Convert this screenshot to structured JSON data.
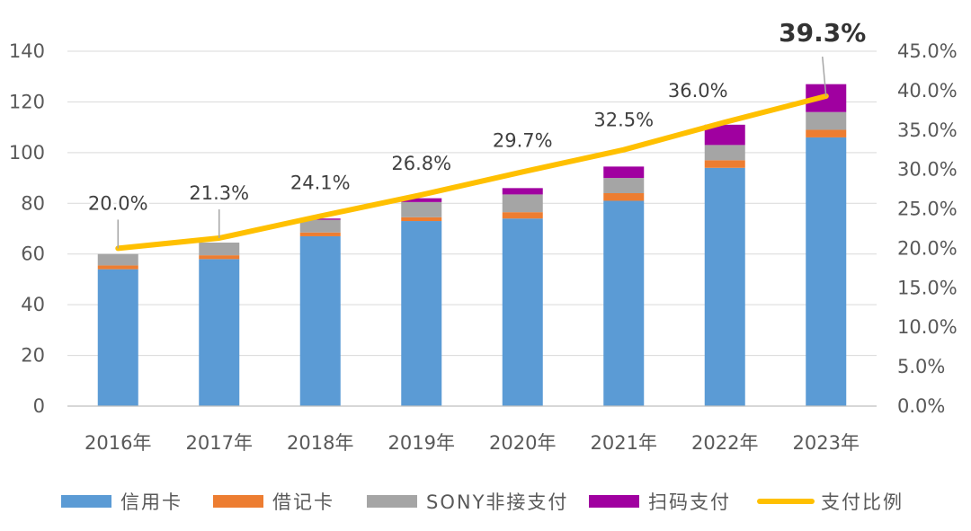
{
  "chart_data": {
    "type": "bar",
    "stacked": true,
    "categories": [
      "2016年",
      "2017年",
      "2018年",
      "2019年",
      "2020年",
      "2021年",
      "2022年",
      "2023年"
    ],
    "series": [
      {
        "name": "信用卡",
        "type": "bar",
        "axis": "left",
        "color": "#5B9BD5",
        "values": [
          54,
          58,
          67,
          73,
          74,
          81,
          94,
          106
        ]
      },
      {
        "name": "借记卡",
        "type": "bar",
        "axis": "left",
        "color": "#ED7D31",
        "values": [
          1.5,
          1.5,
          1.5,
          1.5,
          2.5,
          3,
          3,
          3
        ]
      },
      {
        "name": "SONY非接支付",
        "type": "bar",
        "axis": "left",
        "color": "#A5A5A5",
        "values": [
          4.5,
          5,
          5,
          6,
          7,
          6,
          6,
          7
        ]
      },
      {
        "name": "扫码支付",
        "type": "bar",
        "axis": "left",
        "color": "#A000A0",
        "values": [
          0,
          0,
          0.5,
          1.5,
          2.5,
          4.5,
          8,
          11
        ]
      },
      {
        "name": "支付比例",
        "type": "line",
        "axis": "right",
        "color": "#FFC000",
        "values": [
          20.0,
          21.3,
          24.1,
          26.8,
          29.7,
          32.5,
          36.0,
          39.3
        ]
      }
    ],
    "line_labels": [
      "20.0%",
      "21.3%",
      "24.1%",
      "26.8%",
      "29.7%",
      "32.5%",
      "36.0%",
      "39.3%"
    ],
    "y_left": {
      "min": 0,
      "max": 140,
      "step": 20,
      "ticks": [
        "0",
        "20",
        "40",
        "60",
        "80",
        "100",
        "120",
        "140"
      ]
    },
    "y_right": {
      "min": 0,
      "max": 45,
      "step": 5,
      "ticks": [
        "0.0%",
        "5.0%",
        "10.0%",
        "15.0%",
        "20.0%",
        "25.0%",
        "30.0%",
        "35.0%",
        "40.0%",
        "45.0%"
      ]
    },
    "grid": true,
    "legend_position": "bottom"
  }
}
